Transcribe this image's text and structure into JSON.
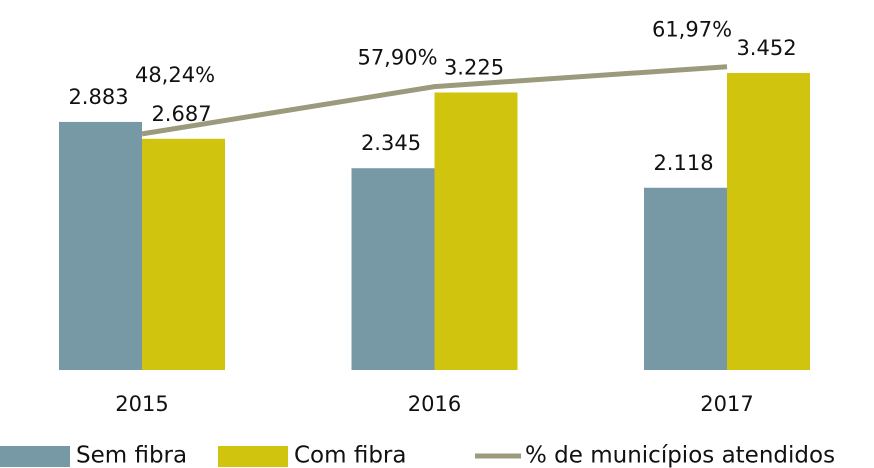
{
  "chart_data": {
    "type": "bar",
    "categories": [
      "2015",
      "2016",
      "2017"
    ],
    "series": [
      {
        "name": "Sem fibra",
        "color": "#7799a5",
        "values": [
          2883,
          2345,
          2118
        ],
        "value_labels": [
          "2.883",
          "2.345",
          "2.118"
        ]
      },
      {
        "name": "Com fibra",
        "color": "#d0c40e",
        "values": [
          2687,
          3225,
          3452
        ],
        "value_labels": [
          "2.687",
          "3.225",
          "3.452"
        ]
      },
      {
        "name": "% de municípios atendidos",
        "type": "line",
        "axis": "y2",
        "color": "#9c9a7c",
        "values": [
          48.24,
          57.9,
          61.97
        ],
        "value_labels": [
          "48,24%",
          "57,90%",
          "61,97%"
        ]
      }
    ],
    "ylim": [
      0,
      4300
    ],
    "y2lim": [
      0,
      75.6
    ],
    "grid": false
  }
}
